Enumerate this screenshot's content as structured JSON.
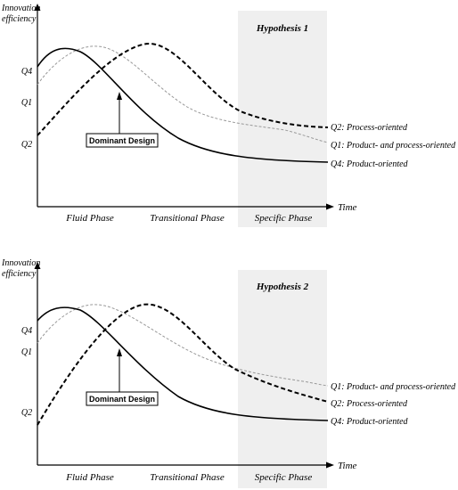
{
  "panels": [
    {
      "y_axis_label_line1": "Innovation",
      "y_axis_label_line2": "efficiency",
      "x_axis_label": "Time",
      "hypothesis": "Hypothesis 1",
      "phases": [
        "Fluid Phase",
        "Transitional Phase",
        "Specific Phase"
      ],
      "start_labels": {
        "q4": "Q4",
        "q1": "Q1",
        "q2": "Q2"
      },
      "callout": "Dominant Design",
      "end_labels": {
        "q2": "Q2: Process-oriented",
        "q1": "Q1: Product- and process-oriented",
        "q4": "Q4: Product-oriented"
      }
    },
    {
      "y_axis_label_line1": "Innovation",
      "y_axis_label_line2": "efficiency",
      "x_axis_label": "Time",
      "hypothesis": "Hypothesis 2",
      "phases": [
        "Fluid Phase",
        "Transitional Phase",
        "Specific Phase"
      ],
      "start_labels": {
        "q4": "Q4",
        "q1": "Q1",
        "q2": "Q2"
      },
      "callout": "Dominant Design",
      "end_labels": {
        "q1": "Q1: Product- and process-oriented",
        "q2": "Q2: Process-oriented",
        "q4": "Q4: Product-oriented"
      }
    }
  ],
  "colors": {
    "q4_line": "#000000",
    "q2_line": "#000000",
    "q1_line": "#999999",
    "specific_phase_shade": "#efefef"
  }
}
